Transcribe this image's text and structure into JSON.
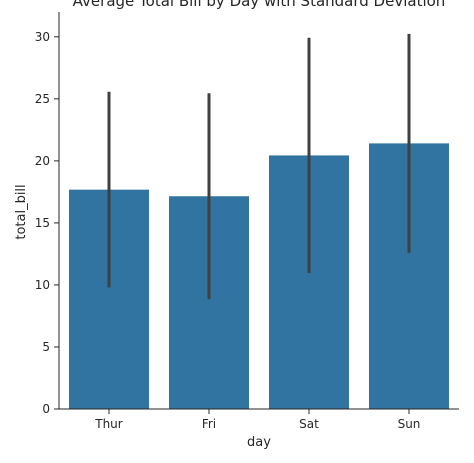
{
  "chart_data": {
    "type": "bar",
    "title": "Average Total Bill by Day with Standard Deviation",
    "xlabel": "day",
    "ylabel": "total_bill",
    "categories": [
      "Thur",
      "Fri",
      "Sat",
      "Sun"
    ],
    "values": [
      17.68,
      17.15,
      20.44,
      21.41
    ],
    "error": [
      7.89,
      8.3,
      9.48,
      8.83
    ],
    "ylim": [
      0,
      32
    ],
    "yticks": [
      "0",
      "5",
      "10",
      "15",
      "20",
      "25",
      "30"
    ],
    "grid": false,
    "colors": {
      "bar": "#3274a1",
      "errorbar": "#404040",
      "axis": "#262626"
    }
  }
}
